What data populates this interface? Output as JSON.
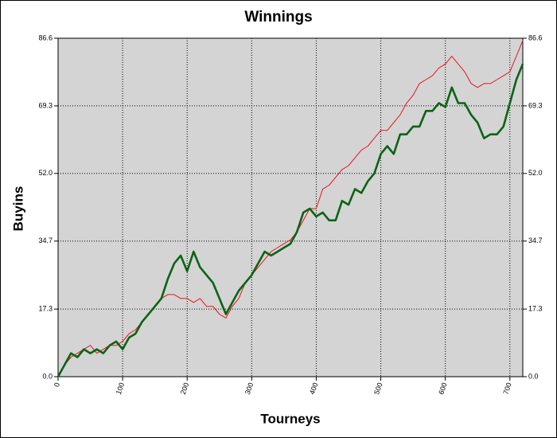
{
  "chart_data": {
    "type": "line",
    "title": "Winnings",
    "xlabel": "Tourneys",
    "ylabel": "Buyins",
    "x": [
      0,
      10,
      20,
      30,
      40,
      50,
      60,
      70,
      80,
      90,
      100,
      110,
      120,
      130,
      140,
      150,
      160,
      170,
      180,
      190,
      200,
      210,
      220,
      230,
      240,
      250,
      260,
      270,
      280,
      290,
      300,
      310,
      320,
      330,
      340,
      350,
      360,
      370,
      380,
      390,
      400,
      410,
      420,
      430,
      440,
      450,
      460,
      470,
      480,
      490,
      500,
      510,
      520,
      530,
      540,
      550,
      560,
      570,
      580,
      590,
      600,
      610,
      620,
      630,
      640,
      650,
      660,
      670,
      680,
      690,
      700,
      710,
      720
    ],
    "series": [
      {
        "color": "#e8141e",
        "width": 1,
        "values": [
          0,
          3,
          5,
          6,
          7,
          8,
          6,
          7,
          8,
          8,
          9,
          11,
          12,
          14,
          16,
          18,
          20,
          21,
          21,
          20,
          20,
          19,
          20,
          18,
          18,
          16,
          15,
          18,
          20,
          24,
          26,
          28,
          30,
          32,
          33,
          34,
          35,
          37,
          40,
          43,
          43,
          48,
          49,
          51,
          53,
          54,
          56,
          58,
          59,
          61,
          63,
          63,
          65,
          67,
          70,
          72,
          75,
          76,
          77,
          79,
          80,
          82,
          80,
          78,
          75,
          74,
          75,
          75,
          76,
          77,
          78,
          82,
          86
        ]
      },
      {
        "color": "#0a6414",
        "width": 2.6,
        "values": [
          0,
          3,
          6,
          5,
          7,
          6,
          7,
          6,
          8,
          9,
          7,
          10,
          11,
          14,
          16,
          18,
          20,
          25,
          29,
          31,
          27,
          32,
          28,
          26,
          24,
          20,
          16,
          19,
          22,
          24,
          26,
          29,
          32,
          31,
          32,
          33,
          34,
          37,
          42,
          43,
          41,
          42,
          40,
          40,
          45,
          44,
          48,
          47,
          50,
          52,
          57,
          59,
          57,
          62,
          62,
          64,
          64,
          68,
          68,
          70,
          69,
          74,
          70,
          70,
          67,
          65,
          61,
          62,
          62,
          64,
          70,
          76,
          80
        ]
      }
    ],
    "xlim": [
      0,
      720
    ],
    "xticks": [
      0,
      100,
      200,
      300,
      400,
      500,
      600,
      700
    ],
    "ylim": [
      0,
      86.6
    ],
    "yticks": [
      {
        "value": 0,
        "label": "0.0"
      },
      17.3,
      34.7,
      {
        "value": 52,
        "label": "52.0"
      },
      69.3,
      86.6
    ],
    "grid": true
  }
}
